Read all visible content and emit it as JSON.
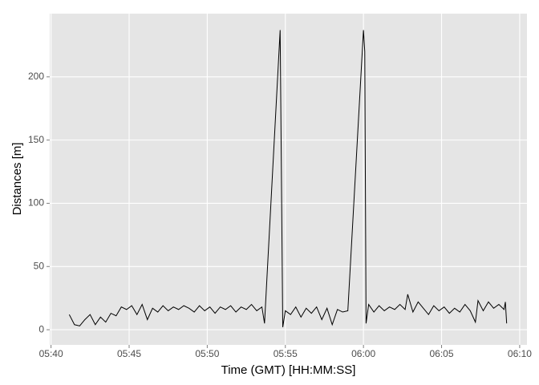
{
  "chart_data": {
    "type": "line",
    "x_label": "Time (GMT) [HH:MM:SS]",
    "y_label": "Distances [m]",
    "x": [
      "05:41:10",
      "05:41:30",
      "05:41:50",
      "05:42:10",
      "05:42:30",
      "05:42:50",
      "05:43:10",
      "05:43:30",
      "05:43:50",
      "05:44:10",
      "05:44:30",
      "05:44:50",
      "05:45:10",
      "05:45:30",
      "05:45:50",
      "05:46:10",
      "05:46:30",
      "05:46:50",
      "05:47:10",
      "05:47:30",
      "05:47:50",
      "05:48:10",
      "05:48:30",
      "05:48:50",
      "05:49:10",
      "05:49:30",
      "05:49:50",
      "05:50:10",
      "05:50:30",
      "05:50:50",
      "05:51:10",
      "05:51:30",
      "05:51:50",
      "05:52:10",
      "05:52:30",
      "05:52:50",
      "05:53:10",
      "05:53:30",
      "05:53:40",
      "05:54:40",
      "05:54:50",
      "05:55:00",
      "05:55:20",
      "05:55:40",
      "05:56:00",
      "05:56:20",
      "05:56:40",
      "05:57:00",
      "05:57:20",
      "05:57:40",
      "05:58:00",
      "05:58:20",
      "05:58:40",
      "05:59:00",
      "06:00:00",
      "06:00:05",
      "06:00:10",
      "06:00:20",
      "06:00:40",
      "06:01:00",
      "06:01:20",
      "06:01:40",
      "06:02:00",
      "06:02:20",
      "06:02:40",
      "06:02:50",
      "06:03:10",
      "06:03:30",
      "06:03:50",
      "06:04:10",
      "06:04:30",
      "06:04:50",
      "06:05:10",
      "06:05:30",
      "06:05:50",
      "06:06:10",
      "06:06:30",
      "06:06:50",
      "06:07:10",
      "06:07:20",
      "06:07:40",
      "06:08:00",
      "06:08:20",
      "06:08:40",
      "06:09:00",
      "06:09:05",
      "06:09:10"
    ],
    "series": [
      {
        "color": "#000000",
        "values": [
          12,
          4,
          3,
          8,
          12,
          4,
          10,
          6,
          13,
          11,
          18,
          16,
          19,
          12,
          20,
          8,
          17,
          14,
          19,
          15,
          18,
          16,
          19,
          17,
          14,
          19,
          15,
          18,
          13,
          18,
          16,
          19,
          14,
          18,
          16,
          20,
          15,
          18,
          5,
          237,
          2,
          15,
          12,
          18,
          10,
          17,
          13,
          18,
          8,
          17,
          4,
          16,
          14,
          15,
          237,
          220,
          5,
          20,
          14,
          19,
          15,
          18,
          16,
          20,
          16,
          28,
          14,
          22,
          17,
          12,
          19,
          15,
          18,
          13,
          17,
          14,
          20,
          15,
          6,
          23,
          15,
          22,
          17,
          20,
          16,
          22,
          5
        ]
      }
    ],
    "xlim": [
      "05:39:55",
      "06:10:28"
    ],
    "xticks": [
      "05:40",
      "05:45",
      "05:50",
      "05:55",
      "06:00",
      "06:05",
      "06:10"
    ],
    "ylim": [
      -12,
      250
    ],
    "yticks": [
      0,
      50,
      100,
      150,
      200
    ],
    "grid": true
  }
}
